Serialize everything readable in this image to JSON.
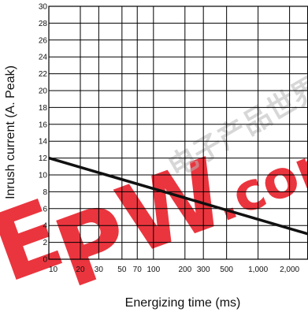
{
  "chart_data": {
    "type": "line",
    "xlabel": "Energizing time (ms)",
    "ylabel": "Inrush current (A. Peak)",
    "x_scale": "log",
    "xlim": [
      10,
      3000
    ],
    "ylim": [
      0,
      30
    ],
    "grid": true,
    "x_ticks": [
      {
        "value": 10,
        "label": "10"
      },
      {
        "value": 20,
        "label": "20"
      },
      {
        "value": 30,
        "label": "30"
      },
      {
        "value": 50,
        "label": "50"
      },
      {
        "value": 70,
        "label": "70"
      },
      {
        "value": 100,
        "label": "100"
      },
      {
        "value": 200,
        "label": "200"
      },
      {
        "value": 300,
        "label": "300"
      },
      {
        "value": 500,
        "label": "500"
      },
      {
        "value": 1000,
        "label": "1,000"
      },
      {
        "value": 2000,
        "label": "2,000"
      }
    ],
    "y_ticks": [
      "0",
      "2",
      "4",
      "6",
      "8",
      "10",
      "12",
      "14",
      "16",
      "18",
      "20",
      "22",
      "24",
      "26",
      "28",
      "30"
    ],
    "series": [
      {
        "x": [
          10,
          3000
        ],
        "y": [
          12,
          3
        ]
      }
    ]
  },
  "watermark": {
    "letters": [
      "E",
      "P",
      "W"
    ],
    "brand_text": ".com",
    "chinese_text": "电子产品世界",
    "color": "#e8202a",
    "chinese_color": "#b8b8b8"
  },
  "colors": {
    "line": "#111111",
    "grid": "#000000"
  }
}
